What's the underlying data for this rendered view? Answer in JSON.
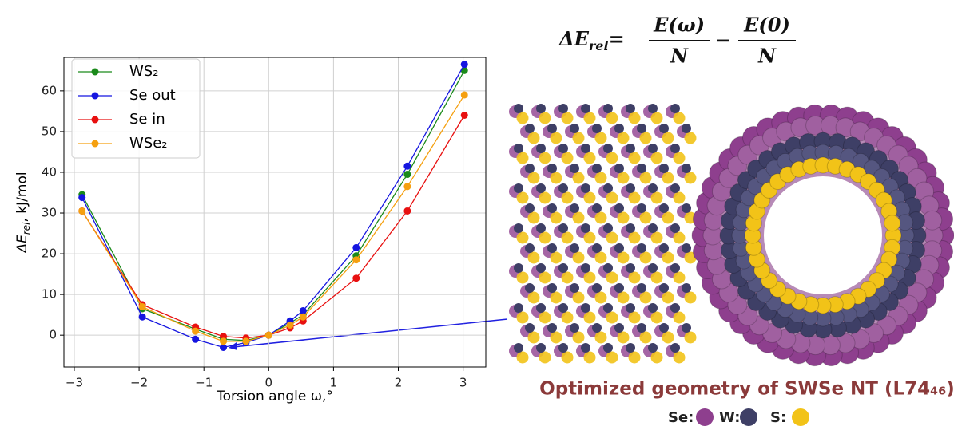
{
  "chart_data": {
    "type": "line",
    "x_label": "Torsion angle ω,°",
    "y_label_parts": [
      "ΔE",
      "rel",
      ", kJ/mol"
    ],
    "x": [
      -2.88,
      -1.95,
      -1.13,
      -0.7,
      -0.35,
      0,
      0.33,
      0.53,
      1.35,
      2.14,
      3.02
    ],
    "series": [
      {
        "name": "WS₂",
        "color": "#1a8a1a",
        "values": [
          34.5,
          6.5,
          1.5,
          -1,
          -1.3,
          0,
          3,
          5,
          19.5,
          39.5,
          65
        ]
      },
      {
        "name": "Se out",
        "color": "#1515e0",
        "values": [
          33.8,
          4.5,
          -1,
          -3,
          -1.8,
          0,
          3.5,
          6,
          21.5,
          41.5,
          66.5
        ]
      },
      {
        "name": "Se in",
        "color": "#e81010",
        "values": [
          30.5,
          7.5,
          2,
          -0.3,
          -0.7,
          0,
          1.8,
          3.5,
          14,
          30.5,
          54
        ]
      },
      {
        "name": "WSe₂",
        "color": "#f5a010",
        "values": [
          30.5,
          7,
          1,
          -1.5,
          -1.5,
          0,
          2.5,
          4.5,
          18.5,
          36.5,
          59
        ]
      }
    ],
    "xlim": [
      -3.16,
      3.35
    ],
    "ylim": [
      -7.8,
      68.2
    ],
    "xticks": [
      {
        "value": -3,
        "label": "−3"
      },
      {
        "value": -2,
        "label": "−2"
      },
      {
        "value": -1,
        "label": "−1"
      },
      0,
      1,
      2,
      3
    ],
    "yticks": [
      0,
      10,
      20,
      30,
      40,
      50,
      60
    ],
    "grid": true,
    "legend": "upper left"
  },
  "formula": {
    "lhs": [
      "ΔE",
      "rel",
      "="
    ],
    "term1": {
      "num": "E(ω)",
      "den": "N"
    },
    "minus": "−",
    "term2": {
      "num": "E(0)",
      "den": "N"
    }
  },
  "caption": "Optimized geometry of SWSe NT (L74₄₆)",
  "atoms": [
    "Se:",
    "W:",
    "S:"
  ]
}
